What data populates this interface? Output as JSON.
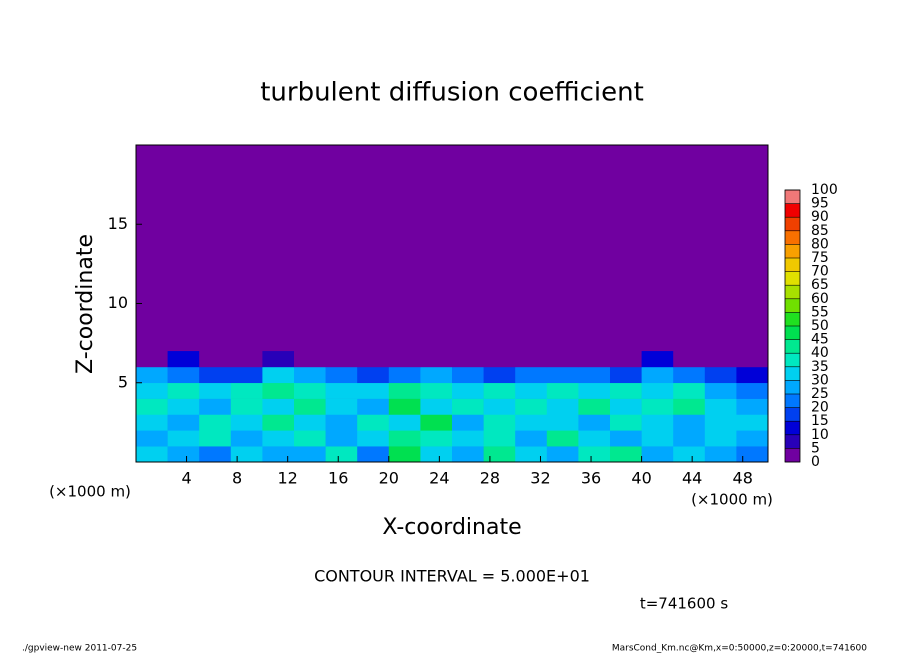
{
  "chart_data": {
    "type": "heatmap",
    "title": "turbulent diffusion coefficient",
    "x_label": "X-coordinate",
    "y_label": "Z-coordinate",
    "x_unit": "(×1000 m)",
    "contour_note": "CONTOUR INTERVAL = 5.000E+01",
    "time_note": "t=741600 s",
    "footer_left": "./gpview-new  2011-07-25",
    "footer_right": "MarsCond_Km.nc@Km,x=0:50000,z=0:20000,t=741600",
    "xlim": [
      0,
      50
    ],
    "ylim": [
      0,
      20
    ],
    "xticks": [
      4,
      8,
      12,
      16,
      20,
      24,
      28,
      32,
      36,
      40,
      44,
      48
    ],
    "yticks": [
      5,
      10,
      15
    ],
    "background_color": "#7000a0",
    "x": [
      1.25,
      3.75,
      6.25,
      8.75,
      11.25,
      13.75,
      16.25,
      18.75,
      21.25,
      23.75,
      26.25,
      28.75,
      31.25,
      33.75,
      36.25,
      38.75,
      41.25,
      43.75,
      46.25,
      48.75
    ],
    "z": [
      0.5,
      1.5,
      2.5,
      3.5,
      4.5,
      5.5,
      6.5
    ],
    "values": [
      [
        30,
        25,
        20,
        30,
        25,
        25,
        35,
        20,
        45,
        30,
        25,
        40,
        30,
        25,
        35,
        40,
        25,
        30,
        25,
        20
      ],
      [
        25,
        30,
        35,
        25,
        30,
        35,
        25,
        30,
        40,
        35,
        30,
        35,
        25,
        40,
        30,
        25,
        30,
        25,
        30,
        25
      ],
      [
        30,
        25,
        35,
        30,
        40,
        30,
        25,
        35,
        30,
        45,
        25,
        35,
        30,
        30,
        25,
        35,
        30,
        25,
        30,
        30
      ],
      [
        35,
        30,
        25,
        35,
        30,
        40,
        30,
        25,
        45,
        30,
        35,
        30,
        35,
        30,
        40,
        30,
        35,
        40,
        30,
        25
      ],
      [
        30,
        35,
        30,
        35,
        40,
        35,
        30,
        30,
        40,
        35,
        30,
        35,
        30,
        35,
        30,
        35,
        30,
        35,
        25,
        20
      ],
      [
        25,
        20,
        15,
        15,
        30,
        25,
        20,
        15,
        20,
        25,
        20,
        15,
        20,
        20,
        20,
        15,
        25,
        20,
        15,
        10
      ],
      [
        0,
        10,
        0,
        0,
        5,
        0,
        0,
        0,
        0,
        0,
        0,
        0,
        0,
        0,
        0,
        0,
        10,
        0,
        0,
        0
      ]
    ],
    "levels": [
      0,
      5,
      10,
      15,
      20,
      25,
      30,
      35,
      40,
      45,
      50,
      55,
      60,
      65,
      70,
      75,
      80,
      85,
      90,
      95,
      100
    ],
    "colors": [
      "#7000a0",
      "#2800b8",
      "#0000d8",
      "#0040f0",
      "#0078ff",
      "#00a8ff",
      "#00d0f0",
      "#00e8c0",
      "#00e890",
      "#00e050",
      "#20e020",
      "#70e000",
      "#a8e000",
      "#e0e000",
      "#f0c800",
      "#f8a000",
      "#f87000",
      "#f04000",
      "#f00000",
      "#f07878"
    ]
  }
}
